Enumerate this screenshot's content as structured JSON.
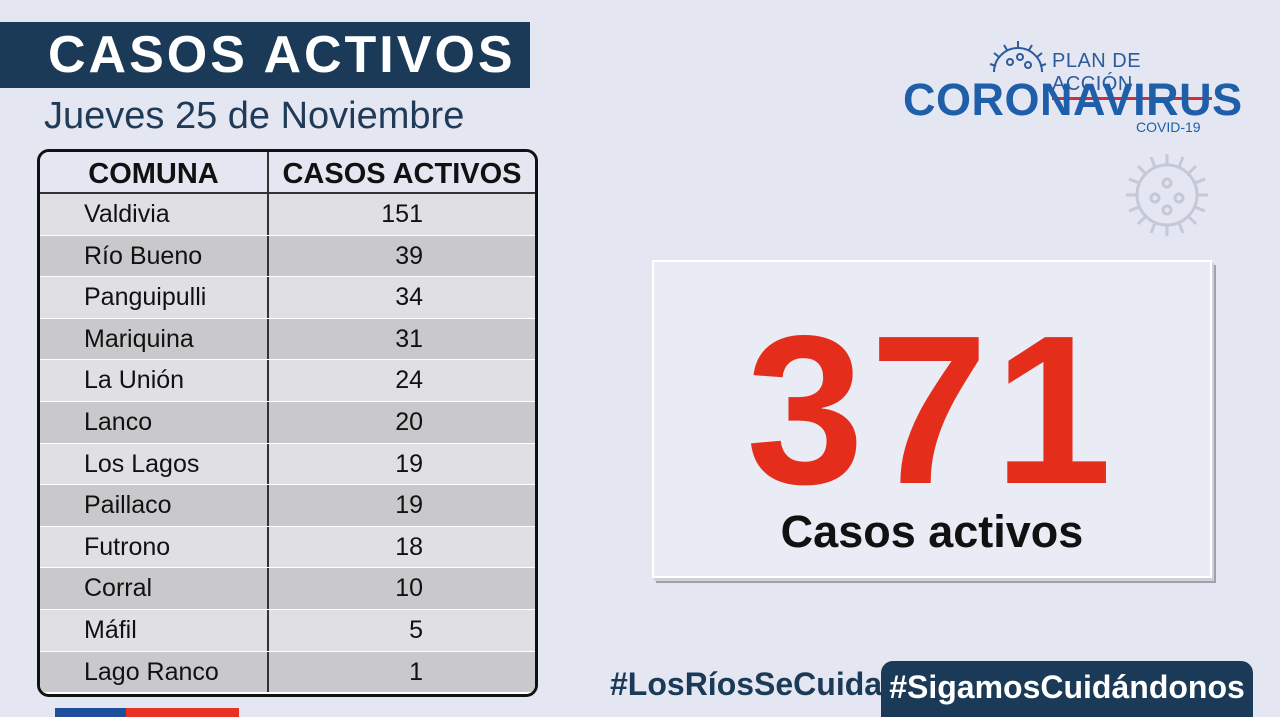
{
  "header": {
    "title": "CASOS ACTIVOS",
    "date": "Jueves 25 de Noviembre"
  },
  "logo": {
    "line1": "PLAN DE ACCIÓN",
    "line2": "CORONAVIRUS",
    "line3": "COVID-19"
  },
  "table": {
    "headers": [
      "COMUNA",
      "CASOS ACTIVOS"
    ],
    "rows": [
      {
        "comuna": "Valdivia",
        "casos": "151"
      },
      {
        "comuna": "Río Bueno",
        "casos": "39"
      },
      {
        "comuna": "Panguipulli",
        "casos": "34"
      },
      {
        "comuna": "Mariquina",
        "casos": "31"
      },
      {
        "comuna": "La Unión",
        "casos": "24"
      },
      {
        "comuna": "Lanco",
        "casos": "20"
      },
      {
        "comuna": "Los Lagos",
        "casos": "19"
      },
      {
        "comuna": "Paillaco",
        "casos": "19"
      },
      {
        "comuna": "Futrono",
        "casos": "18"
      },
      {
        "comuna": "Corral",
        "casos": "10"
      },
      {
        "comuna": "Máfil",
        "casos": "5"
      },
      {
        "comuna": "Lago Ranco",
        "casos": "1"
      }
    ]
  },
  "total": {
    "value": "371",
    "label": "Casos activos"
  },
  "footer": {
    "hashtag1": "#LosRíosSeCuida",
    "hashtag2": "#SigamosCuidándonos"
  },
  "colors": {
    "navy": "#1b3a57",
    "red": "#e52d1c",
    "logo_blue": "#1f5ea8"
  },
  "icons": [
    "virus-icon",
    "virus-watermark-icon",
    "flag-stripe"
  ]
}
